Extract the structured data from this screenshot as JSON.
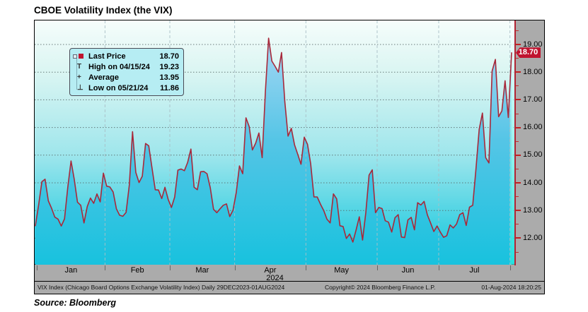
{
  "title": "CBOE Volatility Index (the VIX)",
  "source_note": "Source: Bloomberg",
  "legend": {
    "rows": [
      {
        "marker": "last",
        "label": "Last Price",
        "value": "18.70"
      },
      {
        "marker": "high",
        "label": "High on 04/15/24",
        "value": "19.23"
      },
      {
        "marker": "average",
        "label": "Average",
        "value": "13.95"
      },
      {
        "marker": "low",
        "label": "Low on 05/21/24",
        "value": "11.86"
      }
    ]
  },
  "last_price_badge": "18.70",
  "footer": {
    "left": "VIX Index (Chicago Board Options Exchange Volatility Index)  Daily 29DEC2023-01AUG2024",
    "center": "Copyright© 2024 Bloomberg Finance L.P.",
    "right": "01-Aug-2024 18:20:25"
  },
  "colors": {
    "line": "#a8283a",
    "badge_bg": "#c0142f",
    "badge_text": "#ffffff",
    "area_top": "#a6d7f4",
    "area_mid": "#55c5e6",
    "area_bottom": "#18c2de",
    "band_top": "#ffffff",
    "band_bottom": "#2df0e0",
    "axis_strip": "#ababab",
    "tick_red": "#c02222",
    "hgrid": "#556666",
    "vgrid": "#a9bfc6",
    "legend_bg": "#b6edf3"
  },
  "chart_data": {
    "type": "area",
    "title": "CBOE Volatility Index (the VIX)",
    "ylabel": "",
    "xlabel": "",
    "ylim": [
      11.0,
      19.85
    ],
    "yticks": [
      12,
      13,
      14,
      15,
      16,
      17,
      18,
      19
    ],
    "xtick_labels": [
      "Jan",
      "Feb",
      "Mar",
      "Apr",
      "May",
      "Jun",
      "Jul"
    ],
    "year_label": "2024",
    "grid": true,
    "legend_position": "top-left",
    "series_name": "VIX Index",
    "stats": {
      "last": 18.7,
      "high": 19.23,
      "high_date": "04/15/24",
      "average": 13.95,
      "low": 11.86,
      "low_date": "05/21/24"
    },
    "x": [
      "12/29",
      "01/02",
      "01/03",
      "01/04",
      "01/05",
      "01/08",
      "01/09",
      "01/10",
      "01/11",
      "01/12",
      "01/16",
      "01/17",
      "01/18",
      "01/19",
      "01/22",
      "01/23",
      "01/24",
      "01/25",
      "01/26",
      "01/29",
      "01/30",
      "01/31",
      "02/01",
      "02/02",
      "02/05",
      "02/06",
      "02/07",
      "02/08",
      "02/09",
      "02/12",
      "02/13",
      "02/14",
      "02/15",
      "02/16",
      "02/20",
      "02/21",
      "02/22",
      "02/23",
      "02/26",
      "02/27",
      "02/28",
      "02/29",
      "03/01",
      "03/04",
      "03/05",
      "03/06",
      "03/07",
      "03/08",
      "03/11",
      "03/12",
      "03/13",
      "03/14",
      "03/15",
      "03/18",
      "03/19",
      "03/20",
      "03/21",
      "03/22",
      "03/25",
      "03/26",
      "03/27",
      "03/28",
      "04/01",
      "04/02",
      "04/03",
      "04/04",
      "04/05",
      "04/08",
      "04/09",
      "04/10",
      "04/11",
      "04/12",
      "04/15",
      "04/16",
      "04/17",
      "04/18",
      "04/19",
      "04/22",
      "04/23",
      "04/24",
      "04/25",
      "04/26",
      "04/29",
      "04/30",
      "05/01",
      "05/02",
      "05/03",
      "05/06",
      "05/07",
      "05/08",
      "05/09",
      "05/10",
      "05/13",
      "05/14",
      "05/15",
      "05/16",
      "05/17",
      "05/20",
      "05/21",
      "05/22",
      "05/23",
      "05/24",
      "05/28",
      "05/29",
      "05/30",
      "05/31",
      "06/03",
      "06/04",
      "06/05",
      "06/06",
      "06/07",
      "06/10",
      "06/11",
      "06/12",
      "06/13",
      "06/14",
      "06/17",
      "06/18",
      "06/20",
      "06/21",
      "06/24",
      "06/25",
      "06/26",
      "06/27",
      "06/28",
      "07/01",
      "07/02",
      "07/03",
      "07/05",
      "07/08",
      "07/09",
      "07/10",
      "07/11",
      "07/12",
      "07/15",
      "07/16",
      "07/17",
      "07/18",
      "07/19",
      "07/22",
      "07/23",
      "07/24",
      "07/25",
      "07/26",
      "07/29",
      "07/30",
      "07/31",
      "08/01"
    ],
    "values": [
      12.45,
      13.2,
      14.04,
      14.13,
      13.35,
      13.08,
      12.76,
      12.69,
      12.44,
      12.7,
      13.84,
      14.79,
      14.13,
      13.3,
      13.19,
      12.55,
      13.14,
      13.45,
      13.26,
      13.6,
      13.31,
      14.35,
      13.88,
      13.85,
      13.67,
      13.06,
      12.83,
      12.79,
      12.93,
      13.93,
      15.85,
      14.38,
      14.01,
      14.24,
      15.42,
      15.34,
      14.54,
      13.75,
      13.74,
      13.43,
      13.84,
      13.4,
      13.11,
      13.49,
      14.46,
      14.5,
      14.44,
      14.74,
      15.22,
      13.84,
      13.75,
      14.4,
      14.41,
      14.33,
      13.82,
      13.04,
      12.92,
      13.06,
      13.19,
      13.24,
      12.78,
      13.01,
      13.65,
      14.61,
      14.33,
      16.35,
      16.03,
      15.19,
      15.43,
      15.8,
      14.91,
      17.31,
      19.23,
      18.4,
      18.21,
      18.0,
      18.71,
      16.94,
      15.69,
      15.97,
      15.37,
      15.03,
      14.67,
      15.65,
      15.39,
      14.68,
      13.49,
      13.49,
      13.23,
      13.0,
      12.69,
      12.55,
      13.6,
      13.42,
      12.45,
      12.42,
      11.99,
      12.15,
      11.86,
      12.29,
      12.77,
      11.93,
      12.92,
      14.28,
      14.47,
      12.92,
      13.11,
      13.07,
      12.63,
      12.58,
      12.22,
      12.74,
      12.85,
      12.04,
      12.02,
      12.66,
      12.75,
      12.3,
      13.28,
      13.2,
      13.33,
      12.84,
      12.55,
      12.24,
      12.44,
      12.22,
      12.03,
      12.09,
      12.48,
      12.37,
      12.51,
      12.85,
      12.92,
      12.46,
      13.12,
      13.19,
      14.48,
      15.93,
      16.52,
      14.91,
      14.72,
      18.04,
      18.46,
      16.39,
      16.6,
      17.69,
      16.36,
      18.7
    ]
  }
}
